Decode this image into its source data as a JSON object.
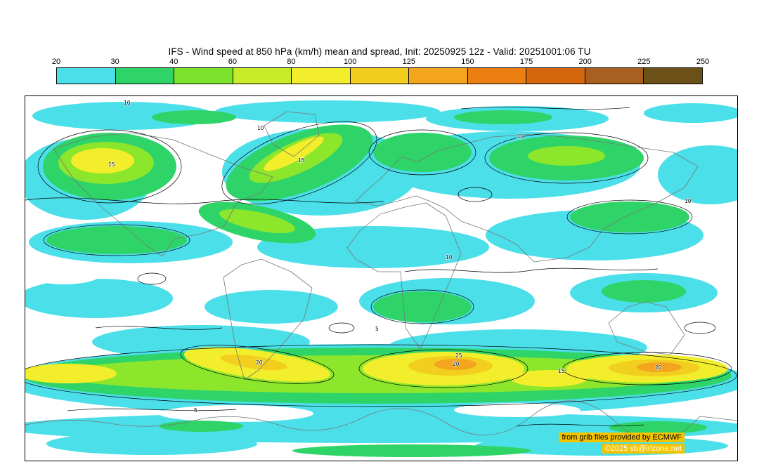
{
  "header": {
    "title": "IFS - Wind speed at 850 hPa (km/h) mean and spread, Init: 20250925 12z - Valid: 20251001:06 TU"
  },
  "colorbar": {
    "tick_labels": [
      "20",
      "30",
      "40",
      "60",
      "80",
      "100",
      "125",
      "150",
      "175",
      "200",
      "225",
      "250"
    ],
    "segment_colors": [
      "#4bdfe9",
      "#2ed468",
      "#7de32d",
      "#c9ec2a",
      "#f3ee2b",
      "#f2cf1e",
      "#f2a51d",
      "#ec7f12",
      "#d4670e",
      "#a85f1f",
      "#6b5018"
    ]
  },
  "map": {
    "contour_labels": [
      "5",
      "10",
      "15",
      "20",
      "25"
    ],
    "fill_colors": {
      "cyan": "#4bdfe9",
      "green": "#2fd468",
      "chartreuse": "#8ce62c",
      "yellow": "#f3ee2b",
      "gold": "#f2cf1e",
      "orange": "#f2a51d"
    }
  },
  "attribution": {
    "line1": "from grib files provided by ECMWF",
    "line2": "©2025 sb@irizone.net",
    "highlight_color": "#f3c300"
  }
}
